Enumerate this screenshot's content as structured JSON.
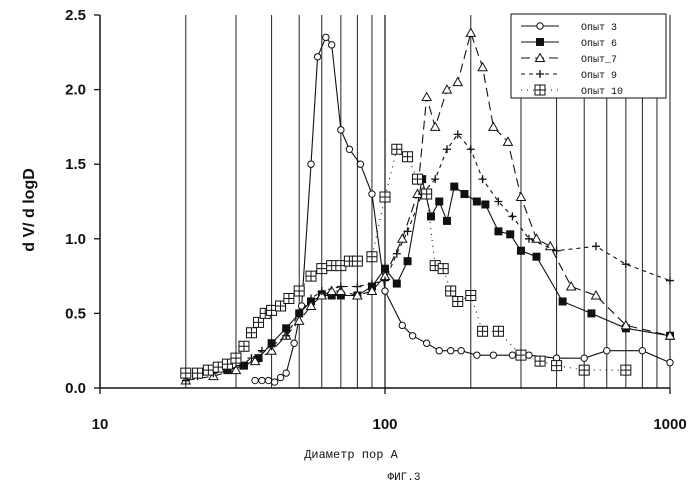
{
  "figure_caption": "ФИГ.3",
  "chart_data": {
    "type": "line",
    "xlabel": "Диаметр пор A",
    "ylabel": "d V/ d logD",
    "xscale": "log",
    "xlim": [
      10,
      1000
    ],
    "ylim": [
      0,
      2.5
    ],
    "x_ticks": [
      "10",
      "100",
      "1000"
    ],
    "y_ticks": [
      "0.0",
      "0.5",
      "1.0",
      "1.5",
      "2.0",
      "2.5"
    ],
    "grid": "vertical lines",
    "legend_position": "top-right",
    "series": [
      {
        "name": "Опыт 3",
        "marker": "circle",
        "dash": "",
        "x": [
          35,
          37,
          39,
          41,
          43,
          45,
          48,
          51,
          55,
          58,
          62,
          65,
          70,
          75,
          82,
          90,
          100,
          115,
          125,
          140,
          155,
          170,
          185,
          210,
          240,
          280,
          320,
          400,
          500,
          600,
          800,
          1000
        ],
        "y": [
          0.05,
          0.05,
          0.05,
          0.04,
          0.07,
          0.1,
          0.3,
          0.55,
          1.5,
          2.22,
          2.35,
          2.3,
          1.73,
          1.6,
          1.5,
          1.3,
          0.65,
          0.42,
          0.35,
          0.3,
          0.25,
          0.25,
          0.25,
          0.22,
          0.22,
          0.22,
          0.22,
          0.2,
          0.2,
          0.25,
          0.25,
          0.17
        ]
      },
      {
        "name": "Опыт 6",
        "marker": "square",
        "dash": "",
        "x": [
          28,
          32,
          36,
          40,
          45,
          50,
          55,
          60,
          65,
          70,
          80,
          90,
          100,
          110,
          120,
          135,
          145,
          155,
          165,
          175,
          190,
          210,
          225,
          250,
          275,
          300,
          340,
          420,
          530,
          700,
          1000
        ],
        "y": [
          0.12,
          0.15,
          0.2,
          0.3,
          0.4,
          0.5,
          0.58,
          0.62,
          0.62,
          0.62,
          0.62,
          0.68,
          0.8,
          0.7,
          0.85,
          1.4,
          1.15,
          1.25,
          1.12,
          1.35,
          1.3,
          1.25,
          1.23,
          1.05,
          1.03,
          0.92,
          0.88,
          0.58,
          0.5,
          0.4,
          0.35
        ]
      },
      {
        "name": "Опыт_7",
        "marker": "triangle",
        "dash": "9,5",
        "x": [
          20,
          25,
          30,
          35,
          40,
          45,
          50,
          55,
          60,
          65,
          70,
          80,
          90,
          100,
          115,
          130,
          140,
          150,
          165,
          180,
          200,
          220,
          240,
          270,
          300,
          340,
          380,
          450,
          550,
          700,
          1000
        ],
        "y": [
          0.05,
          0.08,
          0.12,
          0.18,
          0.25,
          0.35,
          0.45,
          0.55,
          0.62,
          0.65,
          0.65,
          0.62,
          0.65,
          0.75,
          1.0,
          1.3,
          1.95,
          1.75,
          2.0,
          2.05,
          2.38,
          2.15,
          1.75,
          1.65,
          1.28,
          1.0,
          0.95,
          0.68,
          0.62,
          0.42,
          0.35
        ]
      },
      {
        "name": "Опыт 9",
        "marker": "plus",
        "dash": "4,4",
        "x": [
          20,
          22,
          25,
          28,
          31,
          34,
          37,
          40,
          45,
          50,
          55,
          60,
          70,
          80,
          90,
          100,
          110,
          120,
          135,
          150,
          165,
          180,
          200,
          220,
          250,
          280,
          320,
          400,
          550,
          700,
          1000
        ],
        "y": [
          0.05,
          0.08,
          0.1,
          0.12,
          0.15,
          0.2,
          0.25,
          0.28,
          0.35,
          0.5,
          0.6,
          0.65,
          0.68,
          0.68,
          0.7,
          0.72,
          0.9,
          1.05,
          1.3,
          1.4,
          1.6,
          1.7,
          1.6,
          1.4,
          1.25,
          1.15,
          1.0,
          0.92,
          0.95,
          0.83,
          0.72
        ]
      },
      {
        "name": "Опыт 10",
        "marker": "boxed-plus",
        "dash": "1,5",
        "x": [
          20,
          22,
          24,
          26,
          28,
          30,
          32,
          34,
          36,
          38,
          40,
          43,
          46,
          50,
          55,
          60,
          65,
          70,
          75,
          80,
          90,
          100,
          110,
          120,
          130,
          140,
          150,
          160,
          170,
          180,
          200,
          220,
          250,
          300,
          350,
          400,
          500,
          700
        ],
        "y": [
          0.1,
          0.1,
          0.12,
          0.14,
          0.16,
          0.2,
          0.28,
          0.37,
          0.44,
          0.5,
          0.52,
          0.55,
          0.6,
          0.65,
          0.75,
          0.8,
          0.82,
          0.82,
          0.85,
          0.85,
          0.88,
          1.28,
          1.6,
          1.55,
          1.4,
          1.3,
          0.82,
          0.8,
          0.65,
          0.58,
          0.62,
          0.38,
          0.38,
          0.22,
          0.18,
          0.15,
          0.12,
          0.12
        ]
      }
    ]
  }
}
